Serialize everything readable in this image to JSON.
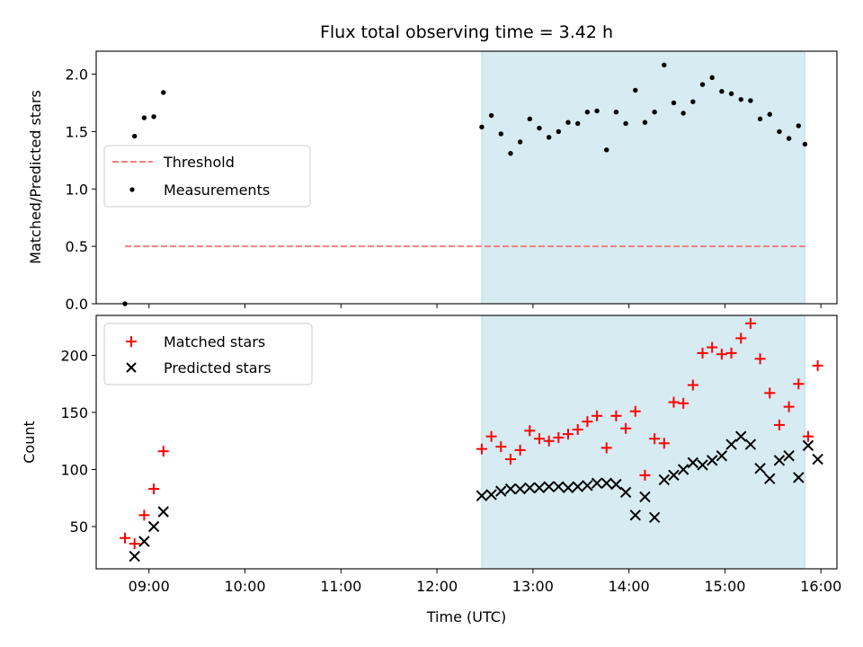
{
  "chart_data": [
    {
      "type": "scatter",
      "title": "Flux total observing time = 3.42 h",
      "xlabel": "",
      "ylabel": "Matched/Predicted stars",
      "xlim": [
        "08:27",
        "16:10"
      ],
      "ylim": [
        0.0,
        2.2
      ],
      "yticks": [
        0.0,
        0.5,
        1.0,
        1.5,
        2.0
      ],
      "ytick_labels": [
        "0.0",
        "0.5",
        "1.0",
        "1.5",
        "2.0"
      ],
      "highlight_span": [
        "12:28",
        "15:50"
      ],
      "legend_position": "center-left",
      "threshold": {
        "name": "Threshold",
        "value": 0.5,
        "x_range": [
          "08:45",
          "15:50"
        ],
        "color": "#f08080"
      },
      "measurements": {
        "name": "Measurements",
        "color": "#000000",
        "x": [
          "08:45",
          "08:51",
          "08:57",
          "09:03",
          "09:09",
          "12:28",
          "12:34",
          "12:40",
          "12:46",
          "12:52",
          "12:58",
          "13:04",
          "13:10",
          "13:16",
          "13:22",
          "13:28",
          "13:34",
          "13:40",
          "13:46",
          "13:52",
          "13:58",
          "14:04",
          "14:10",
          "14:16",
          "14:22",
          "14:28",
          "14:34",
          "14:40",
          "14:46",
          "14:52",
          "14:58",
          "15:04",
          "15:10",
          "15:16",
          "15:22",
          "15:28",
          "15:34",
          "15:40",
          "15:46",
          "15:50"
        ],
        "y": [
          0.0,
          1.46,
          1.62,
          1.63,
          1.84,
          1.54,
          1.64,
          1.48,
          1.31,
          1.41,
          1.61,
          1.53,
          1.45,
          1.5,
          1.58,
          1.57,
          1.67,
          1.68,
          1.34,
          1.67,
          1.57,
          1.86,
          1.58,
          1.67,
          2.08,
          1.75,
          1.66,
          1.76,
          1.91,
          1.97,
          1.85,
          1.83,
          1.78,
          1.77,
          1.61,
          1.65,
          1.5,
          1.44,
          1.55,
          1.39
        ]
      }
    },
    {
      "type": "scatter",
      "xlabel": "Time (UTC)",
      "ylabel": "Count",
      "xlim": [
        "08:27",
        "16:10"
      ],
      "ylim": [
        13,
        235
      ],
      "yticks": [
        50,
        100,
        150,
        200
      ],
      "ytick_labels": [
        "50",
        "100",
        "150",
        "200"
      ],
      "xticks": [
        "09:00",
        "10:00",
        "11:00",
        "12:00",
        "13:00",
        "14:00",
        "15:00",
        "16:00"
      ],
      "xtick_labels": [
        "09:00",
        "10:00",
        "11:00",
        "12:00",
        "13:00",
        "14:00",
        "15:00",
        "16:00"
      ],
      "highlight_span": [
        "12:28",
        "15:50"
      ],
      "legend_position": "upper-left",
      "series": [
        {
          "name": "Matched stars",
          "marker": "plus",
          "color": "#ff0000",
          "x": [
            "08:45",
            "08:51",
            "08:57",
            "09:03",
            "09:09",
            "12:28",
            "12:34",
            "12:40",
            "12:46",
            "12:52",
            "12:58",
            "13:04",
            "13:10",
            "13:16",
            "13:22",
            "13:28",
            "13:34",
            "13:40",
            "13:46",
            "13:52",
            "13:58",
            "14:04",
            "14:10",
            "14:16",
            "14:22",
            "14:28",
            "14:34",
            "14:40",
            "14:46",
            "14:52",
            "14:58",
            "15:04",
            "15:10",
            "15:16",
            "15:22",
            "15:28",
            "15:34",
            "15:40",
            "15:46",
            "15:52",
            "15:58"
          ],
          "y": [
            40,
            35,
            60,
            83,
            116,
            118,
            129,
            120,
            109,
            117,
            134,
            127,
            125,
            128,
            131,
            135,
            142,
            147,
            119,
            147,
            136,
            151,
            95,
            127,
            123,
            159,
            158,
            174,
            202,
            207,
            201,
            202,
            215,
            228,
            197,
            167,
            139,
            155,
            175,
            129,
            191
          ]
        },
        {
          "name": "Predicted stars",
          "marker": "x",
          "color": "#000000",
          "x": [
            "08:51",
            "08:57",
            "09:03",
            "09:09",
            "12:28",
            "12:34",
            "12:40",
            "12:46",
            "12:52",
            "12:58",
            "13:04",
            "13:10",
            "13:16",
            "13:22",
            "13:28",
            "13:34",
            "13:40",
            "13:46",
            "13:52",
            "13:58",
            "14:04",
            "14:10",
            "14:16",
            "14:22",
            "14:28",
            "14:34",
            "14:40",
            "14:46",
            "14:52",
            "14:58",
            "15:04",
            "15:10",
            "15:16",
            "15:22",
            "15:28",
            "15:34",
            "15:40",
            "15:46",
            "15:52",
            "15:58"
          ],
          "y": [
            24,
            37,
            50,
            63,
            77,
            78,
            81,
            83,
            83,
            84,
            84,
            85,
            85,
            84,
            85,
            86,
            88,
            88,
            87,
            80,
            60,
            76,
            58,
            91,
            95,
            100,
            106,
            104,
            108,
            112,
            122,
            129,
            122,
            101,
            92,
            108,
            112,
            93,
            121,
            109
          ]
        }
      ]
    }
  ]
}
